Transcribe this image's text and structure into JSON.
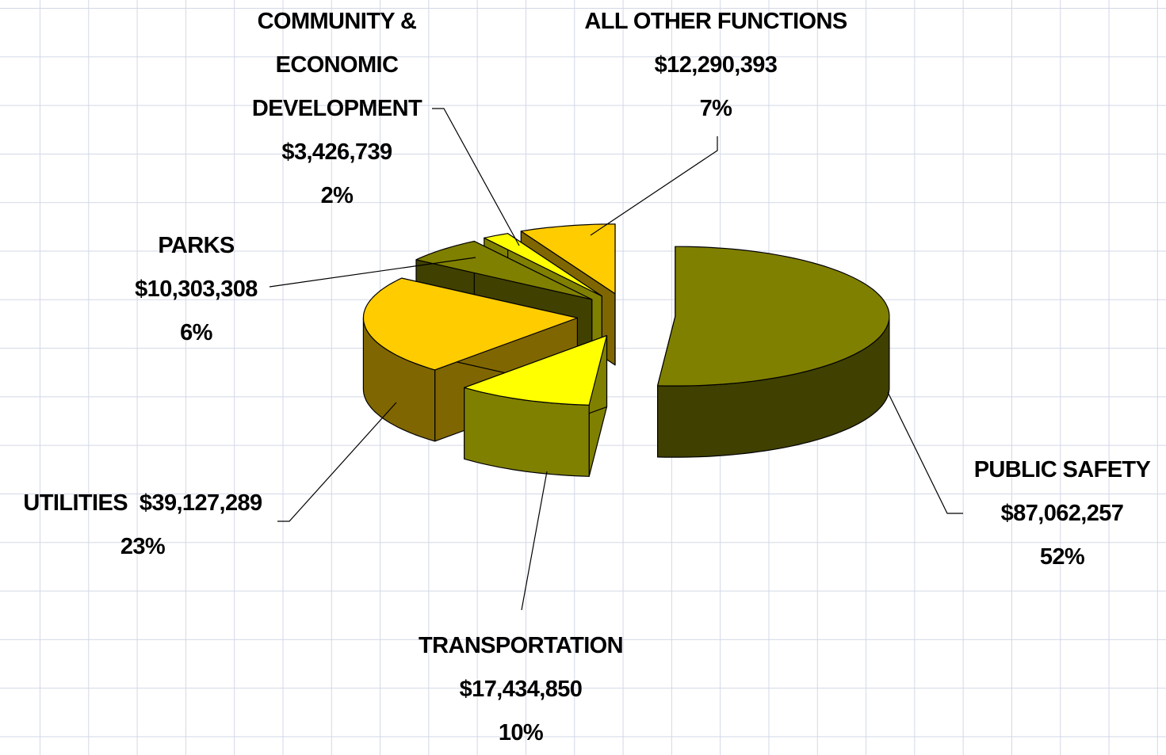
{
  "chart_data": {
    "type": "pie3d",
    "categories": [
      "PUBLIC SAFETY",
      "TRANSPORTATION",
      "UTILITIES",
      "PARKS",
      "COMMUNITY & ECONOMIC DEVELOPMENT",
      "ALL OTHER FUNCTIONS"
    ],
    "values": [
      87062257,
      17434850,
      39127289,
      10303308,
      3426739,
      12290393
    ],
    "value_labels": [
      "$87,062,257",
      "$17,434,850",
      "$39,127,289",
      "$10,303,308",
      "$3,426,739",
      "$12,290,393"
    ],
    "percents": [
      52,
      10,
      23,
      6,
      2,
      7
    ],
    "percent_labels": [
      "52%",
      "10%",
      "23%",
      "6%",
      "2%",
      "7%"
    ],
    "colors": [
      "#808000",
      "#ffff00",
      "#ffcc00",
      "#808000",
      "#ffff00",
      "#ffcc00"
    ],
    "side_colors": [
      "#404000",
      "#808000",
      "#806600",
      "#404000",
      "#808000",
      "#806600"
    ]
  }
}
